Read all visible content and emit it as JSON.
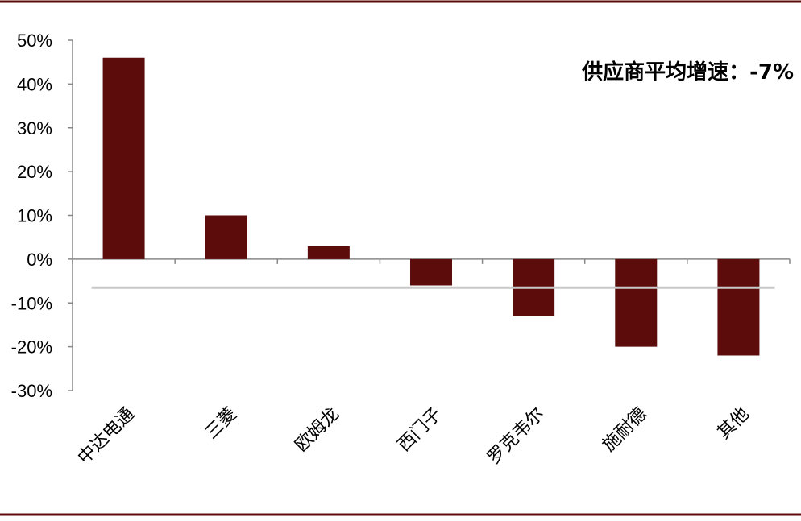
{
  "chart_data": {
    "type": "bar",
    "categories": [
      "中达电通",
      "三菱",
      "欧姆龙",
      "西门子",
      "罗克韦尔",
      "施耐德",
      "其他"
    ],
    "values": [
      46,
      10,
      3,
      -6,
      -13,
      -20,
      -22
    ],
    "ylim": [
      -30,
      50
    ],
    "yticks": [
      "50%",
      "40%",
      "30%",
      "20%",
      "10%",
      "0%",
      "-10%",
      "-20%",
      "-30%"
    ],
    "ytick_values": [
      50,
      40,
      30,
      20,
      10,
      0,
      -10,
      -20,
      -30
    ],
    "average_line_value": -6.5,
    "annotation": "供应商平均增速：-7%",
    "title": "",
    "xlabel": "",
    "ylabel": "",
    "grid": false,
    "colors": {
      "bar": "#5c0d0b",
      "average_line": "#c8c8c8",
      "frame": "#5c0d0b",
      "axis": "#888888"
    }
  }
}
